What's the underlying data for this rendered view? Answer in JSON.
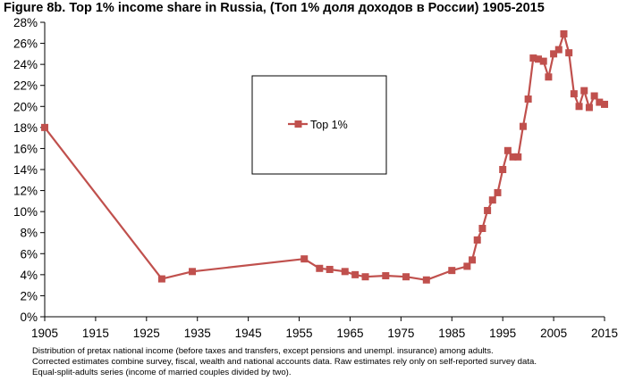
{
  "chart_data": {
    "type": "line",
    "title": "Figure 8b. Top 1% income share in Russia, (Топ 1% доля доходов в России) 1905-2015",
    "xlabel": "",
    "ylabel": "",
    "xlim": [
      1905,
      2015
    ],
    "ylim": [
      0,
      28
    ],
    "x_ticks": [
      1905,
      1915,
      1925,
      1935,
      1945,
      1955,
      1965,
      1975,
      1985,
      1995,
      2005,
      2015
    ],
    "y_ticks": [
      0,
      2,
      4,
      6,
      8,
      10,
      12,
      14,
      16,
      18,
      20,
      22,
      24,
      26,
      28
    ],
    "y_tick_format": "percent",
    "grid": false,
    "legend": "center-left (inside plot)",
    "series": [
      {
        "name": "Top 1%",
        "color": "#c0504d",
        "marker": "square",
        "points": [
          [
            1905,
            18.0
          ],
          [
            1928,
            3.6
          ],
          [
            1934,
            4.3
          ],
          [
            1956,
            5.5
          ],
          [
            1959,
            4.6
          ],
          [
            1961,
            4.5
          ],
          [
            1964,
            4.3
          ],
          [
            1966,
            4.0
          ],
          [
            1968,
            3.8
          ],
          [
            1972,
            3.9
          ],
          [
            1976,
            3.8
          ],
          [
            1980,
            3.5
          ],
          [
            1985,
            4.4
          ],
          [
            1988,
            4.8
          ],
          [
            1989,
            5.4
          ],
          [
            1990,
            7.3
          ],
          [
            1991,
            8.4
          ],
          [
            1992,
            10.1
          ],
          [
            1993,
            11.1
          ],
          [
            1994,
            11.8
          ],
          [
            1995,
            14.0
          ],
          [
            1996,
            15.8
          ],
          [
            1997,
            15.2
          ],
          [
            1998,
            15.2
          ],
          [
            1999,
            18.1
          ],
          [
            2000,
            20.7
          ],
          [
            2001,
            24.6
          ],
          [
            2002,
            24.5
          ],
          [
            2003,
            24.3
          ],
          [
            2004,
            22.8
          ],
          [
            2005,
            25.0
          ],
          [
            2006,
            25.4
          ],
          [
            2007,
            26.9
          ],
          [
            2008,
            25.1
          ],
          [
            2009,
            21.2
          ],
          [
            2010,
            20.0
          ],
          [
            2011,
            21.5
          ],
          [
            2012,
            19.9
          ],
          [
            2013,
            21.0
          ],
          [
            2014,
            20.4
          ],
          [
            2015,
            20.2
          ]
        ]
      }
    ],
    "notes": [
      "Distribution of pretax national income (before taxes and transfers, except pensions and unempl. insurance) among adults.",
      "Corrected estimates combine survey, fiscal, wealth and national accounts data. Raw estimates rely only on self-reported survey data.",
      "Equal-split-adults series (income of married couples divided by two)."
    ]
  }
}
